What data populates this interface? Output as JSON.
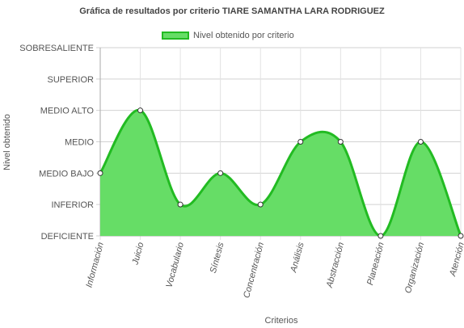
{
  "chart_data": {
    "type": "area",
    "title": "Gráfica de resultados por criterio TIARE SAMANTHA LARA RODRIGUEZ",
    "xlabel": "Criterios",
    "ylabel": "Nivel obtenido",
    "y_levels": [
      "DEFICIENTE",
      "INFERIOR",
      "MEDIO BAJO",
      "MEDIO",
      "MEDIO ALTO",
      "SUPERIOR",
      "SOBRESALIENTE"
    ],
    "categories": [
      "Información",
      "Juicio",
      "Vocabulario",
      "Síntesis",
      "Concentración",
      "Análisis",
      "Abstracción",
      "Planeación",
      "Organización",
      "Atención"
    ],
    "series": [
      {
        "name": "Nivel obtenido por criterio",
        "values": [
          2,
          4,
          1,
          2,
          1,
          3,
          3,
          0,
          3,
          0
        ],
        "value_labels": [
          "MEDIO BAJO",
          "MEDIO ALTO",
          "INFERIOR",
          "MEDIO BAJO",
          "INFERIOR",
          "MEDIO",
          "MEDIO",
          "DEFICIENTE",
          "MEDIO",
          "DEFICIENTE"
        ],
        "fill_color": "#66dd66",
        "line_color": "#22bb22"
      }
    ],
    "ylim": [
      0,
      6
    ],
    "grid": true,
    "legend_position": "top"
  }
}
